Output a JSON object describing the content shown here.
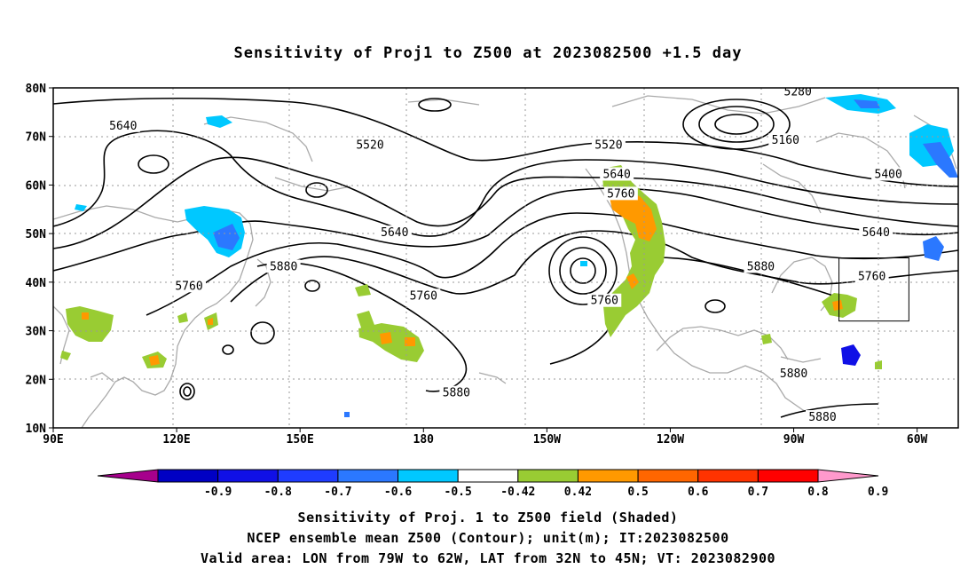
{
  "title": "Sensitivity of Proj1 to Z500 at 2023082500 +1.5 day",
  "lat_labels": [
    "80N",
    "70N",
    "60N",
    "50N",
    "40N",
    "30N",
    "20N",
    "10N"
  ],
  "lon_labels": [
    "90E",
    "120E",
    "150E",
    "180",
    "150W",
    "120W",
    "90W",
    "60W"
  ],
  "lon_range": [
    90,
    310
  ],
  "lat_range": [
    10,
    80
  ],
  "valid_box": {
    "lon_min": 281,
    "lon_max": 298,
    "lat_min": 32,
    "lat_max": 45
  },
  "contour_labels": [
    {
      "text": "5640",
      "lon": 107,
      "lat": 72
    },
    {
      "text": "5520",
      "lon": 167,
      "lat": 68
    },
    {
      "text": "5640",
      "lon": 173,
      "lat": 50
    },
    {
      "text": "5880",
      "lon": 146,
      "lat": 43
    },
    {
      "text": "5760",
      "lon": 123,
      "lat": 39
    },
    {
      "text": "5760",
      "lon": 180,
      "lat": 37
    },
    {
      "text": "5880",
      "lon": 188,
      "lat": 17
    },
    {
      "text": "5520",
      "lon": 225,
      "lat": 68
    },
    {
      "text": "5640",
      "lon": 227,
      "lat": 62
    },
    {
      "text": "5760",
      "lon": 228,
      "lat": 58
    },
    {
      "text": "5760",
      "lon": 224,
      "lat": 36
    },
    {
      "text": "5880",
      "lon": 262,
      "lat": 43
    },
    {
      "text": "5280",
      "lon": 271,
      "lat": 79
    },
    {
      "text": "5160",
      "lon": 268,
      "lat": 69
    },
    {
      "text": "5400",
      "lon": 293,
      "lat": 62
    },
    {
      "text": "5640",
      "lon": 290,
      "lat": 50
    },
    {
      "text": "5760",
      "lon": 289,
      "lat": 41
    },
    {
      "text": "5880",
      "lon": 270,
      "lat": 21
    },
    {
      "text": "5880",
      "lon": 277,
      "lat": 12
    }
  ],
  "colorbar": {
    "colors": [
      "#a6008c",
      "#0000c4",
      "#1010e6",
      "#1f3cff",
      "#2b78ff",
      "#00c8ff",
      "#ffffff",
      "#99cc33",
      "#ff9900",
      "#ff6600",
      "#ff3300",
      "#ff0000",
      "#ff99cc"
    ],
    "labels": [
      "-0.9",
      "-0.8",
      "-0.7",
      "-0.6",
      "-0.5",
      "-0.42",
      "0.42",
      "0.5",
      "0.6",
      "0.7",
      "0.8",
      "0.9"
    ]
  },
  "captions": [
    "Sensitivity of Proj. 1 to Z500 field (Shaded)",
    "NCEP ensemble mean Z500 (Contour); unit(m); IT:2023082500",
    "Valid area: LON from 79W to 62W, LAT from 32N to 45N; VT: 2023082900"
  ]
}
